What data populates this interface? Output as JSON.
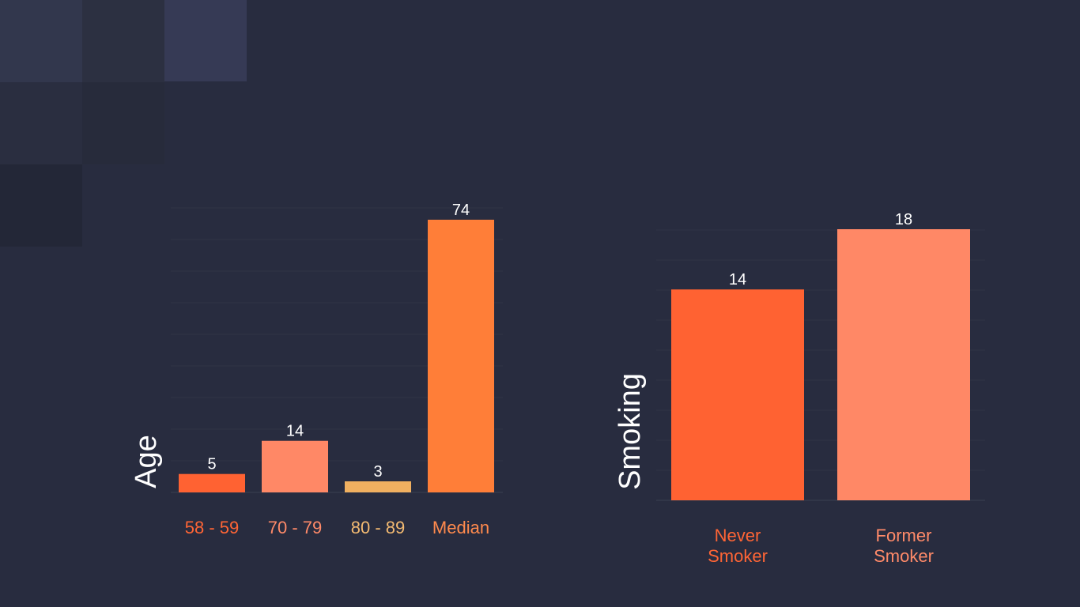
{
  "colors": {
    "background": "#282c3f",
    "label": "#ffffff",
    "tile_a": "#32374d",
    "tile_b": "#2c3041",
    "tile_c": "#363a55",
    "tile_d": "#232737"
  },
  "chart_data": [
    {
      "type": "bar",
      "ylabel": "Age",
      "categories": [
        "58 - 59",
        "70 - 79",
        "80 - 89",
        "Median"
      ],
      "values": [
        5,
        14,
        3,
        74
      ],
      "bar_colors": [
        "#ff6232",
        "#ff8866",
        "#f0b060",
        "#ff7e38"
      ],
      "label_colors": [
        "#ff6535",
        "#ff8a69",
        "#f3ba72",
        "#ff8a4d"
      ],
      "ylim": [
        0,
        80
      ]
    },
    {
      "type": "bar",
      "ylabel": "Smoking",
      "categories": [
        "Never\nSmoker",
        "Former\nSmoker"
      ],
      "values": [
        14,
        18
      ],
      "bar_colors": [
        "#ff6232",
        "#ff8866"
      ],
      "label_colors": [
        "#ff6535",
        "#ff8a69"
      ],
      "ylim": [
        0,
        20
      ]
    }
  ]
}
